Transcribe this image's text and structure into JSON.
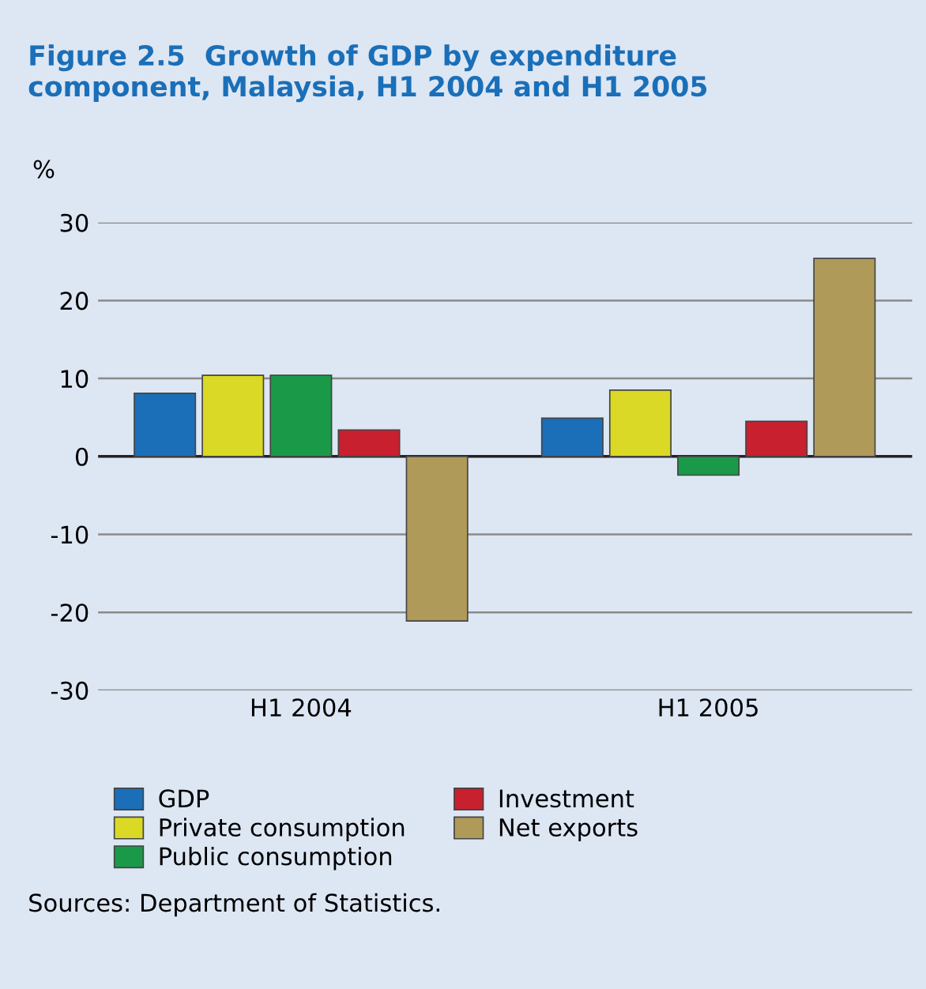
{
  "chart_data": {
    "type": "bar",
    "title": "Figure 2.5  Growth of GDP by expenditure\ncomponent, Malaysia, H1 2004 and H1 2005",
    "ylabel": "%",
    "categories": [
      "H1 2004",
      "H1 2005"
    ],
    "series": [
      {
        "name": "GDP",
        "color": "#1a6fb8",
        "values": [
          8.1,
          4.9
        ]
      },
      {
        "name": "Private consumption",
        "color": "#d9d926",
        "values": [
          10.4,
          8.5
        ]
      },
      {
        "name": "Public consumption",
        "color": "#1a9a48",
        "values": [
          10.4,
          -2.4
        ]
      },
      {
        "name": "Investment",
        "color": "#c8202f",
        "values": [
          3.4,
          4.5
        ]
      },
      {
        "name": "Net exports",
        "color": "#b09a5a",
        "values": [
          -21.1,
          25.4
        ]
      }
    ],
    "ylim": [
      -30,
      30
    ],
    "yticks": [
      -30,
      -20,
      -10,
      0,
      10,
      20,
      30
    ],
    "grid": "y",
    "legend": "bottom",
    "annotations": [
      "Sources: Department of Statistics."
    ]
  }
}
